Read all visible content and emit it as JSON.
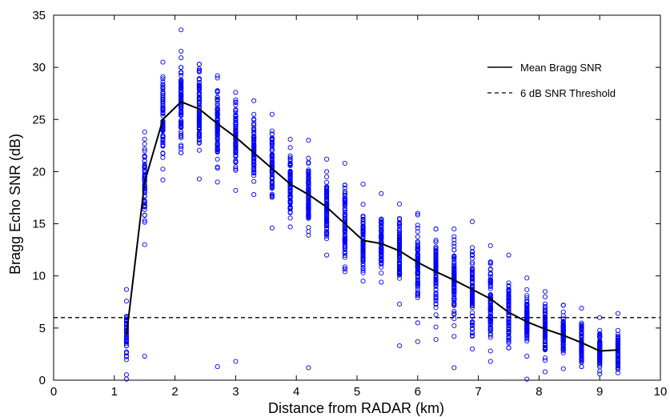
{
  "chart_data": {
    "type": "scatter",
    "title": "",
    "xlabel": "Distance from RADAR (km)",
    "ylabel": "Bragg Echo SNR (dB)",
    "xlim": [
      0,
      10
    ],
    "ylim": [
      0,
      35
    ],
    "xticks": [
      "0",
      "1",
      "2",
      "3",
      "4",
      "5",
      "6",
      "7",
      "8",
      "9",
      "10"
    ],
    "yticks": [
      "0",
      "5",
      "10",
      "15",
      "20",
      "25",
      "30",
      "35"
    ],
    "grid": false,
    "legend_position": "top-right",
    "colors": {
      "scatter": "#0000ff",
      "line": "#000000",
      "threshold": "#000000"
    },
    "series": [
      {
        "name": "Mean Bragg SNR",
        "kind": "line",
        "style": "solid",
        "x": [
          1.2,
          1.5,
          1.8,
          2.1,
          2.4,
          2.7,
          3.0,
          3.3,
          3.6,
          3.9,
          4.2,
          4.5,
          4.8,
          5.1,
          5.4,
          5.7,
          6.0,
          6.3,
          6.6,
          6.9,
          7.2,
          7.5,
          7.8,
          8.1,
          8.4,
          8.7,
          9.0,
          9.3
        ],
        "y": [
          4.3,
          19.0,
          25.0,
          26.7,
          26.0,
          24.6,
          23.3,
          21.8,
          20.3,
          18.8,
          17.8,
          16.6,
          15.0,
          13.4,
          13.1,
          12.4,
          11.3,
          10.4,
          9.6,
          8.7,
          7.8,
          6.5,
          5.6,
          4.9,
          4.3,
          3.6,
          2.8,
          2.9
        ]
      },
      {
        "name": "6 dB SNR Threshold",
        "kind": "hline",
        "style": "dashed",
        "y": 6
      }
    ],
    "scatter_columns": [
      {
        "x": 1.2,
        "ymin": 0.1,
        "ymax": 8.7,
        "center": 4.3,
        "count": 45
      },
      {
        "x": 1.5,
        "ymin": 13.0,
        "ymax": 23.8,
        "center": 19.0,
        "count": 60,
        "outliers": [
          2.3
        ]
      },
      {
        "x": 1.8,
        "ymin": 19.2,
        "ymax": 30.5,
        "center": 25.0,
        "count": 80
      },
      {
        "x": 2.1,
        "ymin": 21.8,
        "ymax": 33.6,
        "center": 26.7,
        "count": 90
      },
      {
        "x": 2.4,
        "ymin": 19.3,
        "ymax": 30.3,
        "center": 26.0,
        "count": 90
      },
      {
        "x": 2.7,
        "ymin": 19.0,
        "ymax": 29.2,
        "center": 24.6,
        "count": 85,
        "outliers": [
          1.3
        ]
      },
      {
        "x": 3.0,
        "ymin": 18.2,
        "ymax": 27.6,
        "center": 23.3,
        "count": 85,
        "outliers": [
          1.8
        ]
      },
      {
        "x": 3.3,
        "ymin": 17.8,
        "ymax": 26.8,
        "center": 21.8,
        "count": 85
      },
      {
        "x": 3.6,
        "ymin": 14.6,
        "ymax": 25.5,
        "center": 20.3,
        "count": 85
      },
      {
        "x": 3.9,
        "ymin": 14.7,
        "ymax": 23.1,
        "center": 18.8,
        "count": 85
      },
      {
        "x": 4.2,
        "ymin": 13.9,
        "ymax": 23.0,
        "center": 17.8,
        "count": 85,
        "outliers": [
          1.2
        ]
      },
      {
        "x": 4.5,
        "ymin": 12.0,
        "ymax": 21.2,
        "center": 16.6,
        "count": 85
      },
      {
        "x": 4.8,
        "ymin": 10.4,
        "ymax": 20.8,
        "center": 15.0,
        "count": 85
      },
      {
        "x": 5.1,
        "ymin": 9.5,
        "ymax": 18.8,
        "center": 13.4,
        "count": 85
      },
      {
        "x": 5.4,
        "ymin": 9.4,
        "ymax": 17.9,
        "center": 13.1,
        "count": 85
      },
      {
        "x": 5.7,
        "ymin": 7.3,
        "ymax": 16.9,
        "center": 12.4,
        "count": 85,
        "outliers": [
          3.3
        ]
      },
      {
        "x": 6.0,
        "ymin": 5.5,
        "ymax": 16.0,
        "center": 11.3,
        "count": 85,
        "outliers": [
          3.7
        ]
      },
      {
        "x": 6.3,
        "ymin": 5.1,
        "ymax": 14.5,
        "center": 10.4,
        "count": 85,
        "outliers": [
          3.9
        ]
      },
      {
        "x": 6.6,
        "ymin": 4.2,
        "ymax": 14.5,
        "center": 9.6,
        "count": 85,
        "outliers": [
          1.2
        ]
      },
      {
        "x": 6.9,
        "ymin": 3.0,
        "ymax": 15.2,
        "center": 8.7,
        "count": 85
      },
      {
        "x": 7.2,
        "ymin": 2.8,
        "ymax": 12.9,
        "center": 7.8,
        "count": 85,
        "outliers": [
          1.8
        ]
      },
      {
        "x": 7.5,
        "ymin": 3.1,
        "ymax": 12.0,
        "center": 6.5,
        "count": 85
      },
      {
        "x": 7.8,
        "ymin": 2.3,
        "ymax": 9.8,
        "center": 5.6,
        "count": 85,
        "outliers": [
          0.1
        ]
      },
      {
        "x": 8.1,
        "ymin": 1.9,
        "ymax": 8.5,
        "center": 4.9,
        "count": 85,
        "outliers": [
          0.8
        ]
      },
      {
        "x": 8.4,
        "ymin": 1.1,
        "ymax": 7.2,
        "center": 4.3,
        "count": 85
      },
      {
        "x": 8.7,
        "ymin": 1.3,
        "ymax": 6.9,
        "center": 3.6,
        "count": 85
      },
      {
        "x": 9.0,
        "ymin": 0.6,
        "ymax": 6.0,
        "center": 2.8,
        "count": 85
      },
      {
        "x": 9.3,
        "ymin": 0.7,
        "ymax": 6.4,
        "center": 2.9,
        "count": 85
      }
    ]
  }
}
